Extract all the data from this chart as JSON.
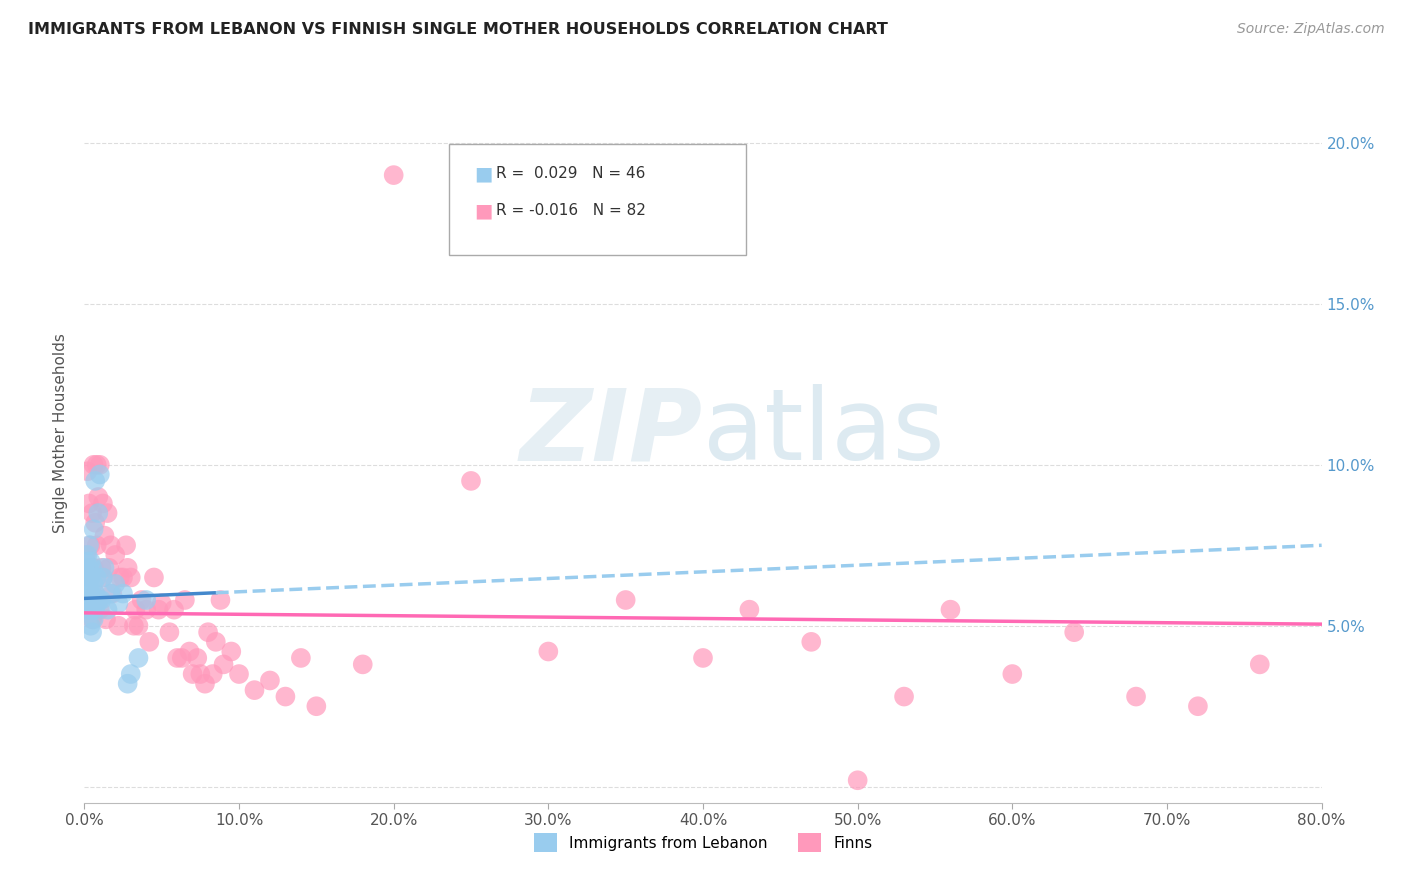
{
  "title": "IMMIGRANTS FROM LEBANON VS FINNISH SINGLE MOTHER HOUSEHOLDS CORRELATION CHART",
  "source": "Source: ZipAtlas.com",
  "ylabel": "Single Mother Households",
  "yticks": [
    0.0,
    0.05,
    0.1,
    0.15,
    0.2
  ],
  "xlim": [
    0.0,
    0.8
  ],
  "ylim": [
    -0.005,
    0.225
  ],
  "legend1_r": "0.029",
  "legend1_n": "46",
  "legend2_r": "-0.016",
  "legend2_n": "82",
  "color_blue": "#99CCEE",
  "color_pink": "#FF99BB",
  "color_trend_blue_solid": "#4488CC",
  "color_trend_blue_dash": "#99CCEE",
  "color_trend_pink": "#FF69B4",
  "background_color": "#FFFFFF",
  "blue_dots_x": [
    0.001,
    0.001,
    0.001,
    0.002,
    0.002,
    0.002,
    0.002,
    0.003,
    0.003,
    0.003,
    0.003,
    0.003,
    0.004,
    0.004,
    0.004,
    0.004,
    0.004,
    0.005,
    0.005,
    0.005,
    0.005,
    0.006,
    0.006,
    0.006,
    0.006,
    0.007,
    0.007,
    0.007,
    0.008,
    0.008,
    0.009,
    0.009,
    0.01,
    0.01,
    0.011,
    0.012,
    0.013,
    0.015,
    0.017,
    0.02,
    0.022,
    0.025,
    0.028,
    0.03,
    0.035,
    0.04
  ],
  "blue_dots_y": [
    0.062,
    0.066,
    0.07,
    0.055,
    0.06,
    0.065,
    0.072,
    0.057,
    0.06,
    0.064,
    0.068,
    0.075,
    0.05,
    0.055,
    0.06,
    0.065,
    0.07,
    0.048,
    0.055,
    0.06,
    0.068,
    0.052,
    0.058,
    0.063,
    0.08,
    0.055,
    0.06,
    0.095,
    0.058,
    0.065,
    0.058,
    0.085,
    0.058,
    0.097,
    0.058,
    0.065,
    0.068,
    0.055,
    0.06,
    0.063,
    0.057,
    0.06,
    0.032,
    0.035,
    0.04,
    0.058
  ],
  "pink_dots_x": [
    0.001,
    0.002,
    0.002,
    0.003,
    0.003,
    0.004,
    0.004,
    0.005,
    0.005,
    0.006,
    0.006,
    0.007,
    0.007,
    0.008,
    0.008,
    0.009,
    0.009,
    0.01,
    0.01,
    0.011,
    0.012,
    0.012,
    0.013,
    0.014,
    0.015,
    0.016,
    0.017,
    0.018,
    0.02,
    0.022,
    0.023,
    0.025,
    0.027,
    0.028,
    0.03,
    0.032,
    0.033,
    0.035,
    0.037,
    0.04,
    0.042,
    0.045,
    0.048,
    0.05,
    0.055,
    0.058,
    0.06,
    0.063,
    0.065,
    0.068,
    0.07,
    0.073,
    0.075,
    0.078,
    0.08,
    0.083,
    0.085,
    0.088,
    0.09,
    0.095,
    0.1,
    0.11,
    0.12,
    0.13,
    0.14,
    0.15,
    0.18,
    0.2,
    0.25,
    0.3,
    0.35,
    0.4,
    0.43,
    0.47,
    0.5,
    0.53,
    0.56,
    0.6,
    0.64,
    0.68,
    0.72,
    0.76
  ],
  "pink_dots_y": [
    0.072,
    0.055,
    0.098,
    0.065,
    0.088,
    0.075,
    0.055,
    0.085,
    0.052,
    0.1,
    0.068,
    0.082,
    0.06,
    0.1,
    0.075,
    0.09,
    0.058,
    0.1,
    0.055,
    0.068,
    0.088,
    0.065,
    0.078,
    0.052,
    0.085,
    0.068,
    0.075,
    0.06,
    0.072,
    0.05,
    0.065,
    0.065,
    0.075,
    0.068,
    0.065,
    0.05,
    0.055,
    0.05,
    0.058,
    0.055,
    0.045,
    0.065,
    0.055,
    0.057,
    0.048,
    0.055,
    0.04,
    0.04,
    0.058,
    0.042,
    0.035,
    0.04,
    0.035,
    0.032,
    0.048,
    0.035,
    0.045,
    0.058,
    0.038,
    0.042,
    0.035,
    0.03,
    0.033,
    0.028,
    0.04,
    0.025,
    0.038,
    0.19,
    0.095,
    0.042,
    0.058,
    0.04,
    0.055,
    0.045,
    0.002,
    0.028,
    0.055,
    0.035,
    0.048,
    0.028,
    0.025,
    0.038
  ]
}
